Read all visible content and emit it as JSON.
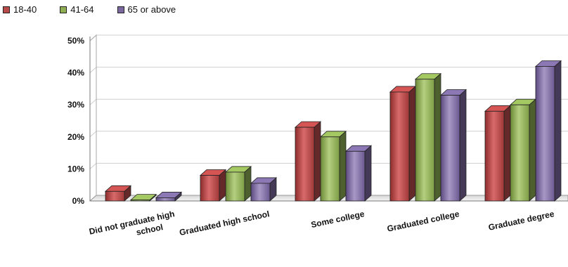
{
  "chart_data": {
    "type": "bar",
    "categories": [
      [
        "Did not graduate high",
        "school"
      ],
      [
        "Graduated high school"
      ],
      [
        "Some college"
      ],
      [
        "Graduated college"
      ],
      [
        "Graduate degree"
      ]
    ],
    "series": [
      {
        "name": "18-40",
        "color": "#b94a4a",
        "values": [
          3,
          8,
          23,
          34,
          28
        ]
      },
      {
        "name": "41-64",
        "color": "#8fae55",
        "values": [
          0.3,
          9,
          20,
          38,
          30
        ]
      },
      {
        "name": "65 or above",
        "color": "#7b689e",
        "values": [
          1,
          5.5,
          15.5,
          33,
          42
        ]
      }
    ],
    "y_ticks": [
      "0%",
      "10%",
      "20%",
      "30%",
      "40%",
      "50%"
    ],
    "ylim": [
      0,
      50
    ],
    "grid": true,
    "legend_position": "top-left"
  }
}
